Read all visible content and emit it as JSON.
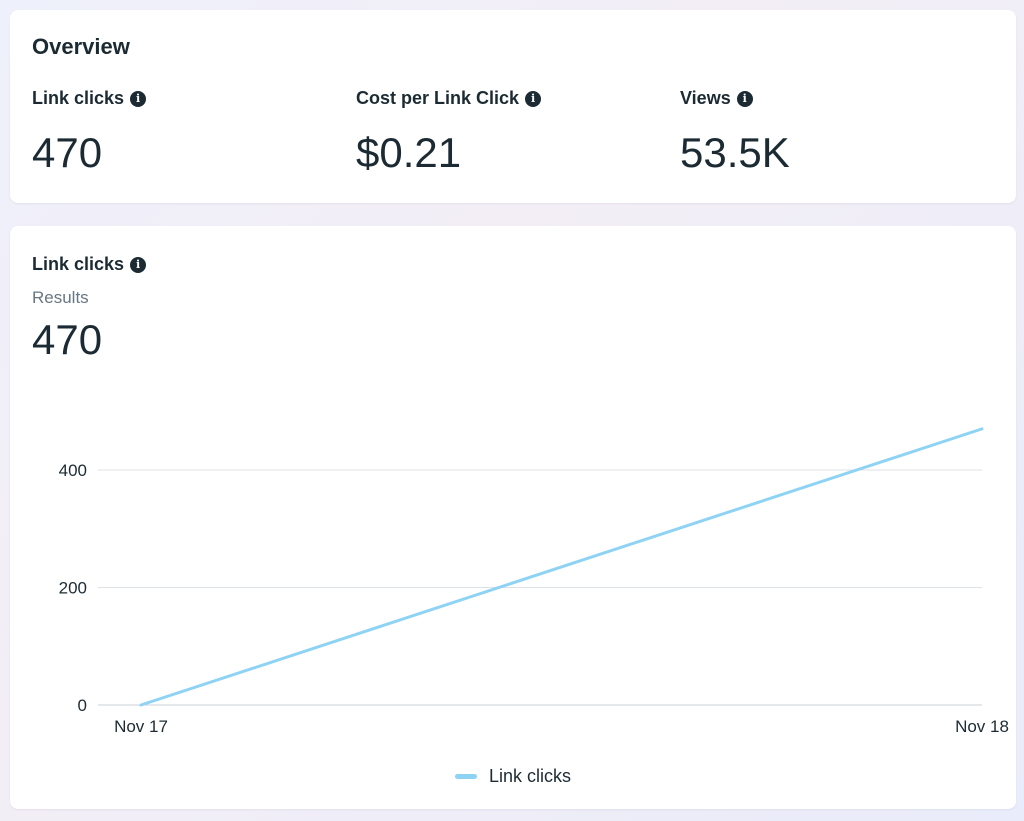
{
  "overview": {
    "title": "Overview",
    "metrics": [
      {
        "label": "Link clicks",
        "value": "470"
      },
      {
        "label": "Cost per Link Click",
        "value": "$0.21"
      },
      {
        "label": "Views",
        "value": "53.5K"
      }
    ]
  },
  "chart_card": {
    "title": "Link clicks",
    "subtitle": "Results",
    "total": "470"
  },
  "chart_data": {
    "type": "line",
    "x": [
      "Nov 17",
      "Nov 18"
    ],
    "series": [
      {
        "name": "Link clicks",
        "values": [
          0,
          470
        ],
        "color": "#8fd3f4"
      }
    ],
    "ylim": [
      0,
      470
    ],
    "yticks": [
      0,
      200,
      400
    ],
    "grid": true,
    "legend": "bottom-center"
  }
}
